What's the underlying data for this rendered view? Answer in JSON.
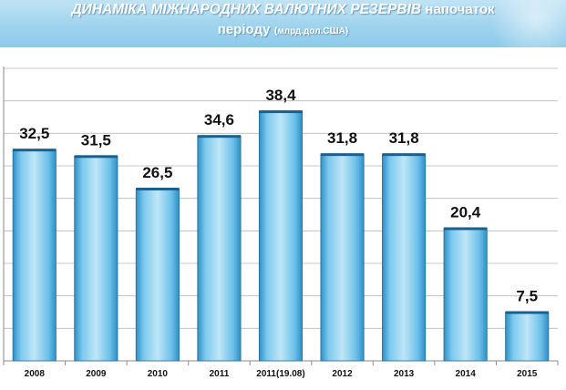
{
  "header": {
    "title_main": "ДИНАМІКА МІЖНАРОДНИХ ВАЛЮТНИХ РЕЗЕРВІВ",
    "title_tail": "напочаток",
    "title_line2_big": "періоду",
    "title_unit": "(млрд.дол.США)"
  },
  "colors": {
    "header_bg": "#9fd3ee",
    "bar_light": "#bfe6f7",
    "bar_mid": "#5ab8e6",
    "bar_dark": "#2f8fc4",
    "grid": "#b8b8b8"
  },
  "chart_data": {
    "type": "bar",
    "categories": [
      "2008",
      "2009",
      "2010",
      "2011",
      "2011(19.08)",
      "2012",
      "2013",
      "2014",
      "2015"
    ],
    "values": [
      32.5,
      31.5,
      26.5,
      34.6,
      38.4,
      31.8,
      31.8,
      20.4,
      7.5
    ],
    "value_labels": [
      "32,5",
      "31,5",
      "26,5",
      "34,6",
      "38,4",
      "31,8",
      "31,8",
      "20,4",
      "7,5"
    ],
    "ylim": [
      0,
      45
    ],
    "grid": true,
    "legend": "none"
  }
}
